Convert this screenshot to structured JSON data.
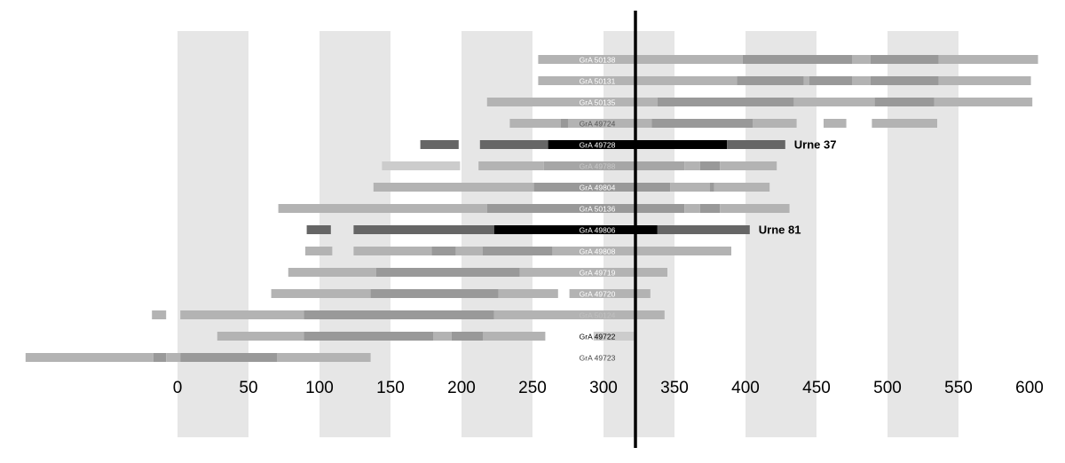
{
  "chart_data": {
    "type": "range",
    "xlim": [
      -125,
      625
    ],
    "xticks": [
      0,
      50,
      100,
      150,
      200,
      250,
      300,
      350,
      400,
      450,
      500,
      550,
      600
    ],
    "bands": true,
    "marker": 322.5,
    "rows": [
      {
        "label": "GrA 50138",
        "label_color": "#ffffff",
        "segments": [
          {
            "start": 254,
            "end": 398,
            "color": "#b3b3b3"
          },
          {
            "start": 398,
            "end": 475,
            "color": "#999999"
          },
          {
            "start": 475,
            "end": 488,
            "color": "#b3b3b3"
          },
          {
            "start": 488,
            "end": 536,
            "color": "#999999"
          },
          {
            "start": 536,
            "end": 606,
            "color": "#b3b3b3"
          }
        ]
      },
      {
        "label": "GrA 50131",
        "label_color": "#ffffff",
        "segments": [
          {
            "start": 254,
            "end": 394,
            "color": "#b3b3b3"
          },
          {
            "start": 394,
            "end": 441,
            "color": "#999999"
          },
          {
            "start": 441,
            "end": 445,
            "color": "#b3b3b3"
          },
          {
            "start": 445,
            "end": 475,
            "color": "#999999"
          },
          {
            "start": 475,
            "end": 488,
            "color": "#b3b3b3"
          },
          {
            "start": 488,
            "end": 536,
            "color": "#999999"
          },
          {
            "start": 536,
            "end": 601,
            "color": "#b3b3b3"
          }
        ]
      },
      {
        "label": "GrA 50135",
        "label_color": "#ffffff",
        "segments": [
          {
            "start": 218,
            "end": 338,
            "color": "#b3b3b3"
          },
          {
            "start": 338,
            "end": 434,
            "color": "#999999"
          },
          {
            "start": 434,
            "end": 491,
            "color": "#b3b3b3"
          },
          {
            "start": 491,
            "end": 533,
            "color": "#999999"
          },
          {
            "start": 533,
            "end": 602,
            "color": "#b3b3b3"
          }
        ]
      },
      {
        "label": "GrA 49724",
        "label_color": "#555555",
        "segments": [
          {
            "start": 234,
            "end": 270,
            "color": "#b3b3b3"
          },
          {
            "start": 270,
            "end": 275,
            "color": "#999999"
          },
          {
            "start": 275,
            "end": 334,
            "color": "#b3b3b3"
          },
          {
            "start": 334,
            "end": 405,
            "color": "#999999"
          },
          {
            "start": 405,
            "end": 436,
            "color": "#b3b3b3"
          },
          {
            "start": 455,
            "end": 471,
            "color": "#b3b3b3"
          },
          {
            "start": 489,
            "end": 535,
            "color": "#b3b3b3"
          }
        ]
      },
      {
        "label": "GrA 49728",
        "label_color": "#ffffff",
        "annotation": "Urne 37",
        "segments": [
          {
            "start": 171,
            "end": 198,
            "color": "#666666"
          },
          {
            "start": 213,
            "end": 261,
            "color": "#666666"
          },
          {
            "start": 261,
            "end": 387,
            "color": "#000000"
          },
          {
            "start": 387,
            "end": 428,
            "color": "#666666"
          }
        ]
      },
      {
        "label": "GrA 49788",
        "label_color": "#c8c8c8",
        "segments": [
          {
            "start": 144,
            "end": 199,
            "color": "#cccccc"
          },
          {
            "start": 212,
            "end": 258,
            "color": "#b3b3b3"
          },
          {
            "start": 258,
            "end": 357,
            "color": "#a6a6a6"
          },
          {
            "start": 357,
            "end": 368,
            "color": "#b3b3b3"
          },
          {
            "start": 368,
            "end": 382,
            "color": "#999999"
          },
          {
            "start": 382,
            "end": 422,
            "color": "#b3b3b3"
          }
        ]
      },
      {
        "label": "GrA 49804",
        "label_color": "#ffffff",
        "segments": [
          {
            "start": 138,
            "end": 251,
            "color": "#b3b3b3"
          },
          {
            "start": 251,
            "end": 347,
            "color": "#999999"
          },
          {
            "start": 347,
            "end": 375,
            "color": "#b3b3b3"
          },
          {
            "start": 375,
            "end": 378,
            "color": "#999999"
          },
          {
            "start": 378,
            "end": 417,
            "color": "#b3b3b3"
          }
        ]
      },
      {
        "label": "GrA 50136",
        "label_color": "#ffffff",
        "segments": [
          {
            "start": 71,
            "end": 218,
            "color": "#b3b3b3"
          },
          {
            "start": 218,
            "end": 357,
            "color": "#999999"
          },
          {
            "start": 357,
            "end": 368,
            "color": "#b3b3b3"
          },
          {
            "start": 368,
            "end": 382,
            "color": "#999999"
          },
          {
            "start": 382,
            "end": 431,
            "color": "#b3b3b3"
          }
        ]
      },
      {
        "label": "GrA 49806",
        "label_color": "#ffffff",
        "annotation": "Urne 81",
        "segments": [
          {
            "start": 91,
            "end": 108,
            "color": "#666666"
          },
          {
            "start": 124,
            "end": 223,
            "color": "#666666"
          },
          {
            "start": 223,
            "end": 338,
            "color": "#000000"
          },
          {
            "start": 338,
            "end": 403,
            "color": "#666666"
          }
        ]
      },
      {
        "label": "GrA 49808",
        "label_color": "#ffffff",
        "segments": [
          {
            "start": 90,
            "end": 109,
            "color": "#b3b3b3"
          },
          {
            "start": 124,
            "end": 179,
            "color": "#b3b3b3"
          },
          {
            "start": 179,
            "end": 196,
            "color": "#999999"
          },
          {
            "start": 196,
            "end": 215,
            "color": "#b3b3b3"
          },
          {
            "start": 215,
            "end": 264,
            "color": "#999999"
          },
          {
            "start": 264,
            "end": 390,
            "color": "#b3b3b3"
          }
        ]
      },
      {
        "label": "GrA 49719",
        "label_color": "#ffffff",
        "segments": [
          {
            "start": 78,
            "end": 140,
            "color": "#b3b3b3"
          },
          {
            "start": 140,
            "end": 241,
            "color": "#999999"
          },
          {
            "start": 241,
            "end": 345,
            "color": "#b3b3b3"
          }
        ]
      },
      {
        "label": "GrA 49720",
        "label_color": "#ffffff",
        "segments": [
          {
            "start": 66,
            "end": 136,
            "color": "#b3b3b3"
          },
          {
            "start": 136,
            "end": 226,
            "color": "#999999"
          },
          {
            "start": 226,
            "end": 268,
            "color": "#b3b3b3"
          },
          {
            "start": 276,
            "end": 333,
            "color": "#b3b3b3"
          }
        ]
      },
      {
        "label": "GrA 50124",
        "label_color": "#c0c0c0",
        "segments": [
          {
            "start": -18,
            "end": -8,
            "color": "#b3b3b3"
          },
          {
            "start": 2,
            "end": 89,
            "color": "#b3b3b3"
          },
          {
            "start": 89,
            "end": 223,
            "color": "#999999"
          },
          {
            "start": 223,
            "end": 343,
            "color": "#b3b3b3"
          }
        ]
      },
      {
        "label": "GrA 49722",
        "label_color": "#000000",
        "segments": [
          {
            "start": 28,
            "end": 89,
            "color": "#b3b3b3"
          },
          {
            "start": 89,
            "end": 180,
            "color": "#999999"
          },
          {
            "start": 180,
            "end": 193,
            "color": "#b3b3b3"
          },
          {
            "start": 193,
            "end": 215,
            "color": "#999999"
          },
          {
            "start": 215,
            "end": 259,
            "color": "#b3b3b3"
          },
          {
            "start": 293,
            "end": 322,
            "color": "#cccccc"
          }
        ]
      },
      {
        "label": "GrA 49723",
        "label_color": "#444444",
        "segments": [
          {
            "start": -107,
            "end": -17,
            "color": "#b3b3b3"
          },
          {
            "start": -17,
            "end": -8,
            "color": "#999999"
          },
          {
            "start": -8,
            "end": 2,
            "color": "#b3b3b3"
          },
          {
            "start": 2,
            "end": 70,
            "color": "#999999"
          },
          {
            "start": 70,
            "end": 136,
            "color": "#b3b3b3"
          }
        ]
      }
    ]
  }
}
